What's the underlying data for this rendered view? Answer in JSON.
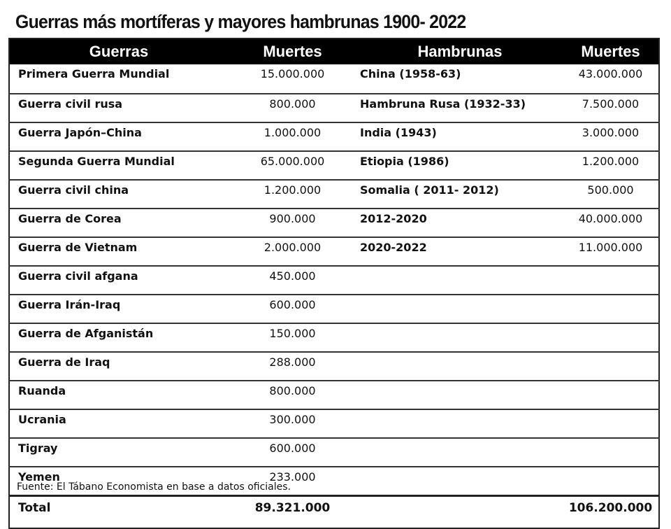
{
  "title": "Guerras más mortíferas y mayores hambrunas 1900- 2022",
  "headers": [
    "Guerras",
    "Muertes",
    "Hambrunas",
    "Muertes"
  ],
  "rows": [
    [
      "Primera Guerra Mundial",
      "15.000.000",
      "China (1958-63)",
      "43.000.000"
    ],
    [
      "Guerra civil rusa",
      "800.000",
      "Hambruna Rusa (1932-33)",
      "7.500.000"
    ],
    [
      "Guerra Japón–China",
      "1.000.000",
      "India (1943)",
      "3.000.000"
    ],
    [
      "Segunda Guerra Mundial",
      "65.000.000",
      "Etiopia (1986)",
      "1.200.000"
    ],
    [
      "Guerra civil china",
      "1.200.000",
      "Somalia ( 2011- 2012)",
      "500.000"
    ],
    [
      "Guerra de Corea",
      "900.000",
      "2012-2020",
      "40.000.000"
    ],
    [
      "Guerra de Vietnam",
      "2.000.000",
      "2020-2022",
      "11.000.000"
    ],
    [
      "Guerra civil afgana",
      "450.000",
      "",
      ""
    ],
    [
      "Guerra Irán-Iraq",
      "600.000",
      "",
      ""
    ],
    [
      "Guerra de Afganistán",
      "150.000",
      "",
      ""
    ],
    [
      "Guerra de Iraq",
      "288.000",
      "",
      ""
    ],
    [
      "Ruanda",
      "800.000",
      "",
      ""
    ],
    [
      "Ucrania",
      "300.000",
      "",
      ""
    ],
    [
      "Tigray",
      "600.000",
      "",
      ""
    ],
    [
      "Yemen",
      "233.000",
      "",
      ""
    ]
  ],
  "total": [
    "Total",
    "89.321.000",
    "",
    "106.200.000"
  ],
  "source": "Fuente: El Tábano Economista en base a datos oficiales."
}
